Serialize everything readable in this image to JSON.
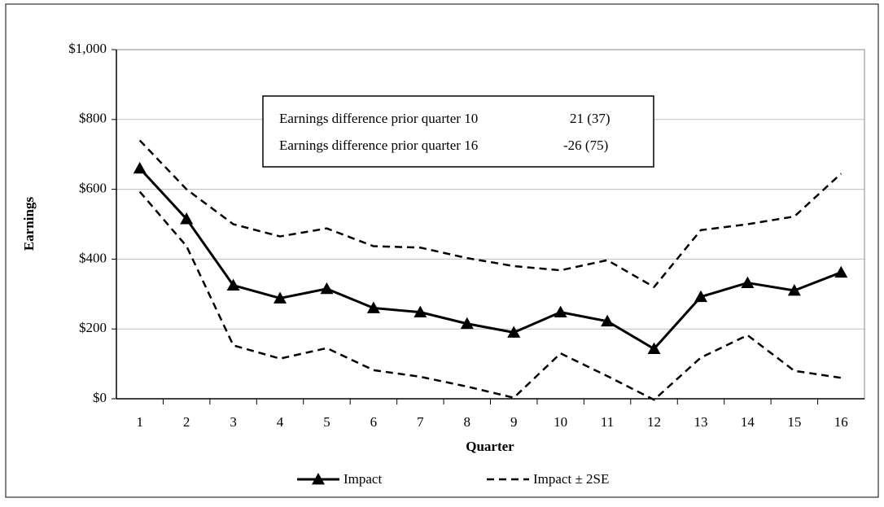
{
  "chart_data": {
    "type": "line",
    "y_label": "Earnings",
    "x_label": "Quarter",
    "categories": [
      1,
      2,
      3,
      4,
      5,
      6,
      7,
      8,
      9,
      10,
      11,
      12,
      13,
      14,
      15,
      16
    ],
    "series": [
      {
        "name": "Impact",
        "color": "#000000",
        "marker": "triangle",
        "dashed": false,
        "values": [
          660,
          515,
          325,
          288,
          315,
          260,
          248,
          215,
          190,
          248,
          222,
          143,
          292,
          332,
          310,
          362
        ]
      },
      {
        "name": "Impact ± 2SE",
        "color": "#000000",
        "dashed": true,
        "values": [
          740,
          600,
          500,
          465,
          488,
          437,
          433,
          403,
          380,
          368,
          397,
          320,
          483,
          500,
          522,
          645
        ],
        "lower": [
          593,
          437,
          153,
          115,
          145,
          82,
          63,
          35,
          3,
          130,
          65,
          -3,
          118,
          182,
          80,
          60
        ]
      }
    ],
    "ylim": [
      0,
      1000
    ],
    "yticks": [
      {
        "value": 0,
        "label": "$0"
      },
      {
        "value": 200,
        "label": "$200"
      },
      {
        "value": 400,
        "label": "$400"
      },
      {
        "value": 600,
        "label": "$600"
      },
      {
        "value": 800,
        "label": "$800"
      },
      {
        "value": 1000,
        "label": "$1,000"
      }
    ],
    "grid": true,
    "annotation": {
      "rows": [
        [
          "Earnings difference prior quarter 10",
          "21 (37)"
        ],
        [
          "Earnings difference prior quarter 16",
          "-26 (75)"
        ]
      ]
    }
  }
}
